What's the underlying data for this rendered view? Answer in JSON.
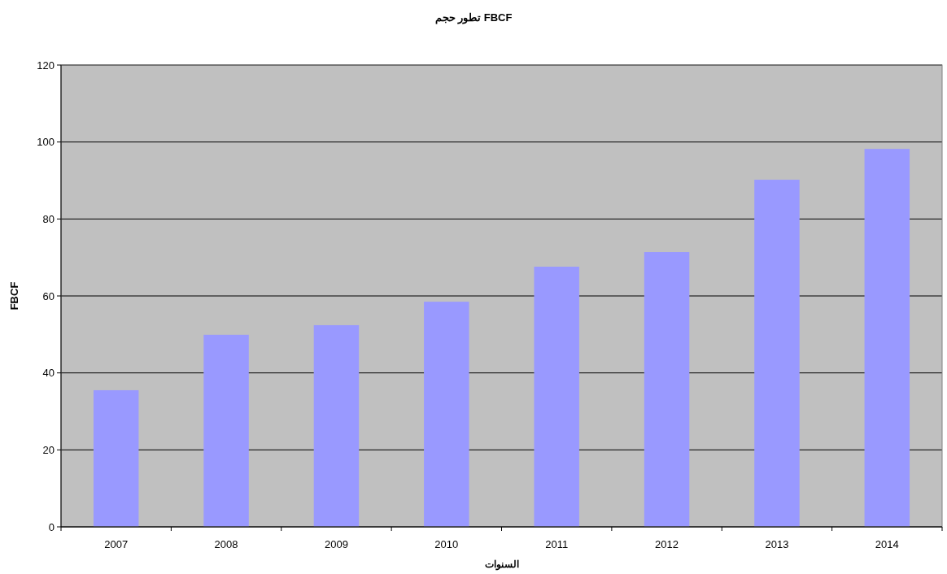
{
  "chart_data": {
    "type": "bar",
    "title": "تطور حجم FBCF",
    "xlabel": "السنوات",
    "ylabel": "FBCF",
    "categories": [
      "2007",
      "2008",
      "2009",
      "2010",
      "2011",
      "2012",
      "2013",
      "2014"
    ],
    "values": [
      35.5,
      49.9,
      52.4,
      58.5,
      67.6,
      71.4,
      90.2,
      98.2
    ],
    "color": "#9999ff",
    "ylim": [
      0,
      120
    ],
    "yticks": [
      0,
      20,
      40,
      60,
      80,
      100,
      120
    ],
    "grid": "y"
  }
}
